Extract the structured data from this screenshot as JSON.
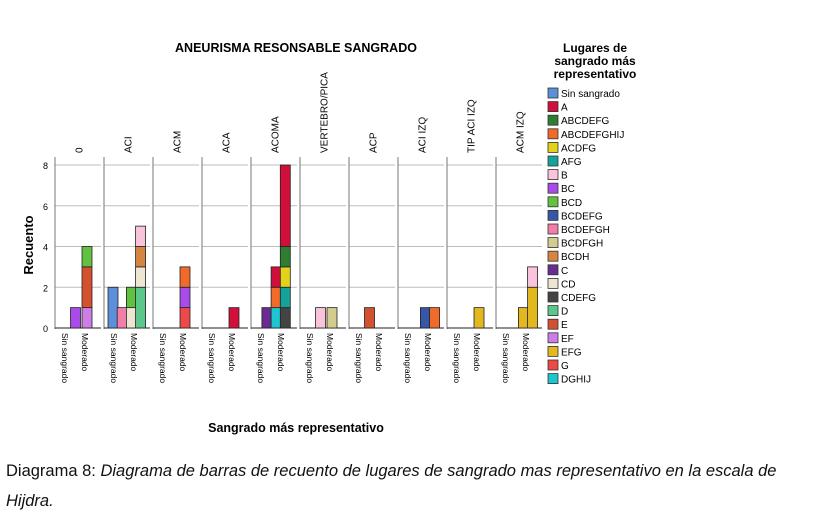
{
  "chart_data": {
    "type": "bar",
    "stacked": true,
    "title": "ANEURISMA RESONSABLE SANGRADO",
    "xlabel": "Sangrado más representativo",
    "ylabel": "Recuento",
    "ylim": [
      0,
      8
    ],
    "yticks": [
      "0",
      "2",
      "4",
      "6",
      "8"
    ],
    "grid": true,
    "legend_position": "right",
    "legend_title": "Lugares de sangrado más representativo",
    "legend": [
      {
        "name": "Sin sangrado",
        "color": "#5B8FD9"
      },
      {
        "name": "A",
        "color": "#D0103A"
      },
      {
        "name": "ABCDEFG",
        "color": "#2E7D32"
      },
      {
        "name": "ABCDEFGHIJ",
        "color": "#F06A2A"
      },
      {
        "name": "ACDFG",
        "color": "#E2D21A"
      },
      {
        "name": "AFG",
        "color": "#14A39A"
      },
      {
        "name": "B",
        "color": "#F9C3DC"
      },
      {
        "name": "BC",
        "color": "#A84BE8"
      },
      {
        "name": "BCD",
        "color": "#62C23F"
      },
      {
        "name": "BCDEFG",
        "color": "#3656A8"
      },
      {
        "name": "BCDEFGH",
        "color": "#F47EAA"
      },
      {
        "name": "BCDFGH",
        "color": "#D4CC8E"
      },
      {
        "name": "BCDH",
        "color": "#D68440"
      },
      {
        "name": "C",
        "color": "#6A2C91"
      },
      {
        "name": "CD",
        "color": "#EEE6D2"
      },
      {
        "name": "CDEFG",
        "color": "#444444"
      },
      {
        "name": "D",
        "color": "#5CC78A"
      },
      {
        "name": "E",
        "color": "#D4512F"
      },
      {
        "name": "EF",
        "color": "#CC7EE6"
      },
      {
        "name": "EFG",
        "color": "#E3B71E"
      },
      {
        "name": "G",
        "color": "#EE4848"
      },
      {
        "name": "DGHIJ",
        "color": "#1DC6CE"
      }
    ],
    "x_categories": [
      "Sin sangrado",
      "Moderado"
    ],
    "panels": [
      {
        "name": "0",
        "bars": [
          {
            "slot": 1,
            "segments": [
              {
                "key": "BC",
                "value": 1
              }
            ]
          },
          {
            "slot": 2,
            "segments": [
              {
                "key": "EF",
                "value": 1
              },
              {
                "key": "E",
                "value": 2
              },
              {
                "key": "BCD",
                "value": 1
              }
            ]
          }
        ]
      },
      {
        "name": "ACI",
        "bars": [
          {
            "slot": 0,
            "segments": [
              {
                "key": "Sin sangrado",
                "value": 2
              }
            ]
          },
          {
            "slot": 0.8,
            "segments": [
              {
                "key": "BCDEFGH",
                "value": 1
              }
            ]
          },
          {
            "slot": 1.6,
            "segments": [
              {
                "key": "CD",
                "value": 1
              },
              {
                "key": "BCD",
                "value": 1
              }
            ]
          },
          {
            "slot": 2.4,
            "segments": [
              {
                "key": "D",
                "value": 2
              },
              {
                "key": "CD",
                "value": 1
              },
              {
                "key": "BCDH",
                "value": 1
              },
              {
                "key": "B",
                "value": 1
              }
            ]
          }
        ]
      },
      {
        "name": "ACM",
        "bars": [
          {
            "slot": 2,
            "segments": [
              {
                "key": "G",
                "value": 1
              },
              {
                "key": "BC",
                "value": 1
              },
              {
                "key": "ABCDEFGHIJ",
                "value": 1
              }
            ]
          }
        ]
      },
      {
        "name": "ACA",
        "bars": [
          {
            "slot": 2,
            "segments": [
              {
                "key": "A",
                "value": 1
              }
            ]
          }
        ]
      },
      {
        "name": "ACOMA",
        "bars": [
          {
            "slot": 0.6,
            "segments": [
              {
                "key": "C",
                "value": 1
              }
            ]
          },
          {
            "slot": 1.4,
            "segments": [
              {
                "key": "DGHIJ",
                "value": 1
              },
              {
                "key": "ABCDEFGHIJ",
                "value": 1
              },
              {
                "key": "A",
                "value": 1
              }
            ]
          },
          {
            "slot": 2.2,
            "segments": [
              {
                "key": "CDEFG",
                "value": 1
              },
              {
                "key": "AFG",
                "value": 1
              },
              {
                "key": "ACDFG",
                "value": 1
              },
              {
                "key": "ABCDEFG",
                "value": 1
              },
              {
                "key": "A",
                "value": 4
              }
            ]
          }
        ]
      },
      {
        "name": "VERTEBRO/PICA",
        "bars": [
          {
            "slot": 1,
            "segments": [
              {
                "key": "B",
                "value": 1
              }
            ]
          },
          {
            "slot": 2,
            "segments": [
              {
                "key": "BCDFGH",
                "value": 1
              }
            ]
          }
        ]
      },
      {
        "name": "ACP",
        "bars": [
          {
            "slot": 1,
            "segments": [
              {
                "key": "E",
                "value": 1
              }
            ]
          }
        ]
      },
      {
        "name": "ACI IZQ",
        "bars": [
          {
            "slot": 1.6,
            "segments": [
              {
                "key": "BCDEFG",
                "value": 1
              }
            ]
          },
          {
            "slot": 2.4,
            "segments": [
              {
                "key": "ABCDEFGHIJ",
                "value": 1
              }
            ]
          }
        ]
      },
      {
        "name": "TIP ACI IZQ",
        "bars": [
          {
            "slot": 2,
            "segments": [
              {
                "key": "EFG",
                "value": 1
              }
            ]
          }
        ]
      },
      {
        "name": "ACM IZQ",
        "bars": [
          {
            "slot": 1.6,
            "segments": [
              {
                "key": "EFG",
                "value": 1
              }
            ]
          },
          {
            "slot": 2.4,
            "segments": [
              {
                "key": "EFG",
                "value": 2
              },
              {
                "key": "B",
                "value": 1
              }
            ]
          }
        ]
      }
    ]
  },
  "caption": {
    "label": "Diagrama 8:",
    "text": "Diagrama de barras de recuento de lugares de sangrado mas representativo en la escala de Hijdra."
  }
}
